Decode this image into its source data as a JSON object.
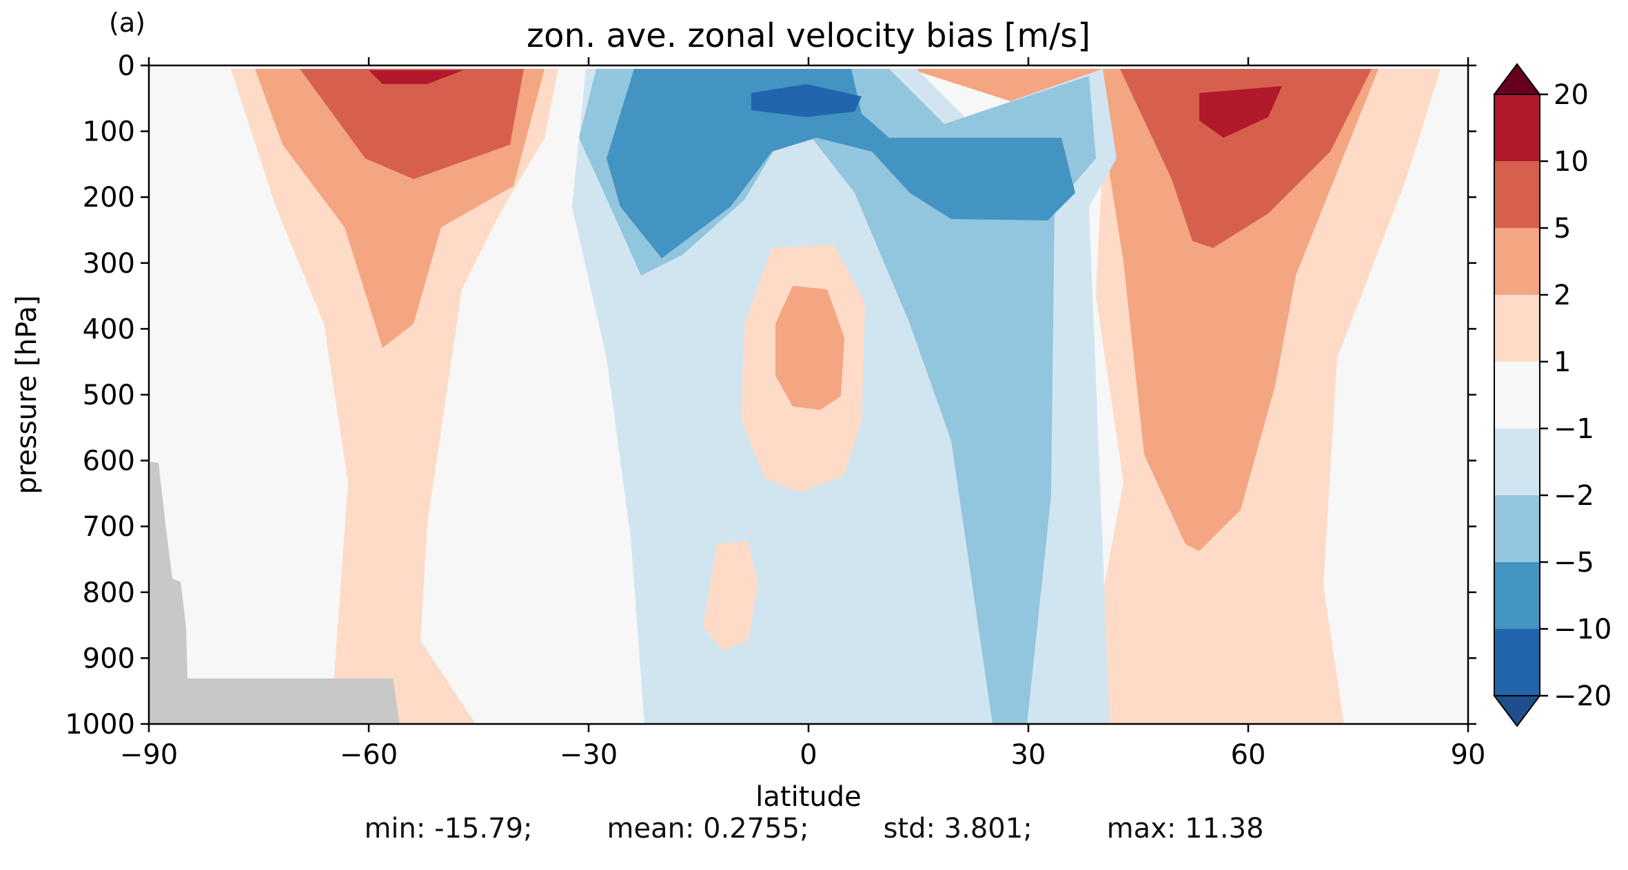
{
  "panel_label": "(a)",
  "stats": {
    "min": "min: -15.79;",
    "mean": "mean: 0.2755;",
    "std": "std: 3.801;",
    "max": "max: 11.38"
  },
  "chart_data": {
    "type": "heatmap",
    "title": "zon. ave. zonal velocity bias [m/s]",
    "xlabel": "latitude",
    "ylabel": "pressure [hPa]",
    "xlim": [
      -90,
      90
    ],
    "ylim": [
      1000,
      0
    ],
    "x_ticks": [
      -90,
      -60,
      -30,
      0,
      30,
      60,
      90
    ],
    "x_tick_labels": [
      "−90",
      "−60",
      "−30",
      "0",
      "30",
      "60",
      "90"
    ],
    "y_ticks": [
      0,
      100,
      200,
      300,
      400,
      500,
      600,
      700,
      800,
      900,
      1000
    ],
    "y_tick_labels": [
      "0",
      "100",
      "200",
      "300",
      "400",
      "500",
      "600",
      "700",
      "800",
      "900",
      "1000"
    ],
    "colorbar": {
      "levels": [
        -20,
        -10,
        -5,
        -2,
        -1,
        1,
        2,
        5,
        10,
        20
      ],
      "tick_labels": [
        "−20",
        "−10",
        "−5",
        "−2",
        "−1",
        "1",
        "2",
        "5",
        "10",
        "20"
      ],
      "colors": [
        "#1f4e8c",
        "#2166ac",
        "#4393c3",
        "#92c5de",
        "#d1e5f0",
        "#f7f7f7",
        "#fddbc7",
        "#f4a582",
        "#d6604d",
        "#b2182b",
        "#67001f"
      ],
      "extend": "both"
    },
    "missing_color": "#c8c8c8",
    "features": [
      {
        "kind": "positive",
        "lat": -55,
        "pressure": 10,
        "value": 10
      },
      {
        "kind": "positive",
        "lat": 57,
        "pressure": 60,
        "value": 11.38
      },
      {
        "kind": "negative",
        "lat": 0,
        "pressure": 50,
        "value": -15.79
      },
      {
        "kind": "positive",
        "lat": 0,
        "pressure": 400,
        "value": 3
      }
    ]
  }
}
